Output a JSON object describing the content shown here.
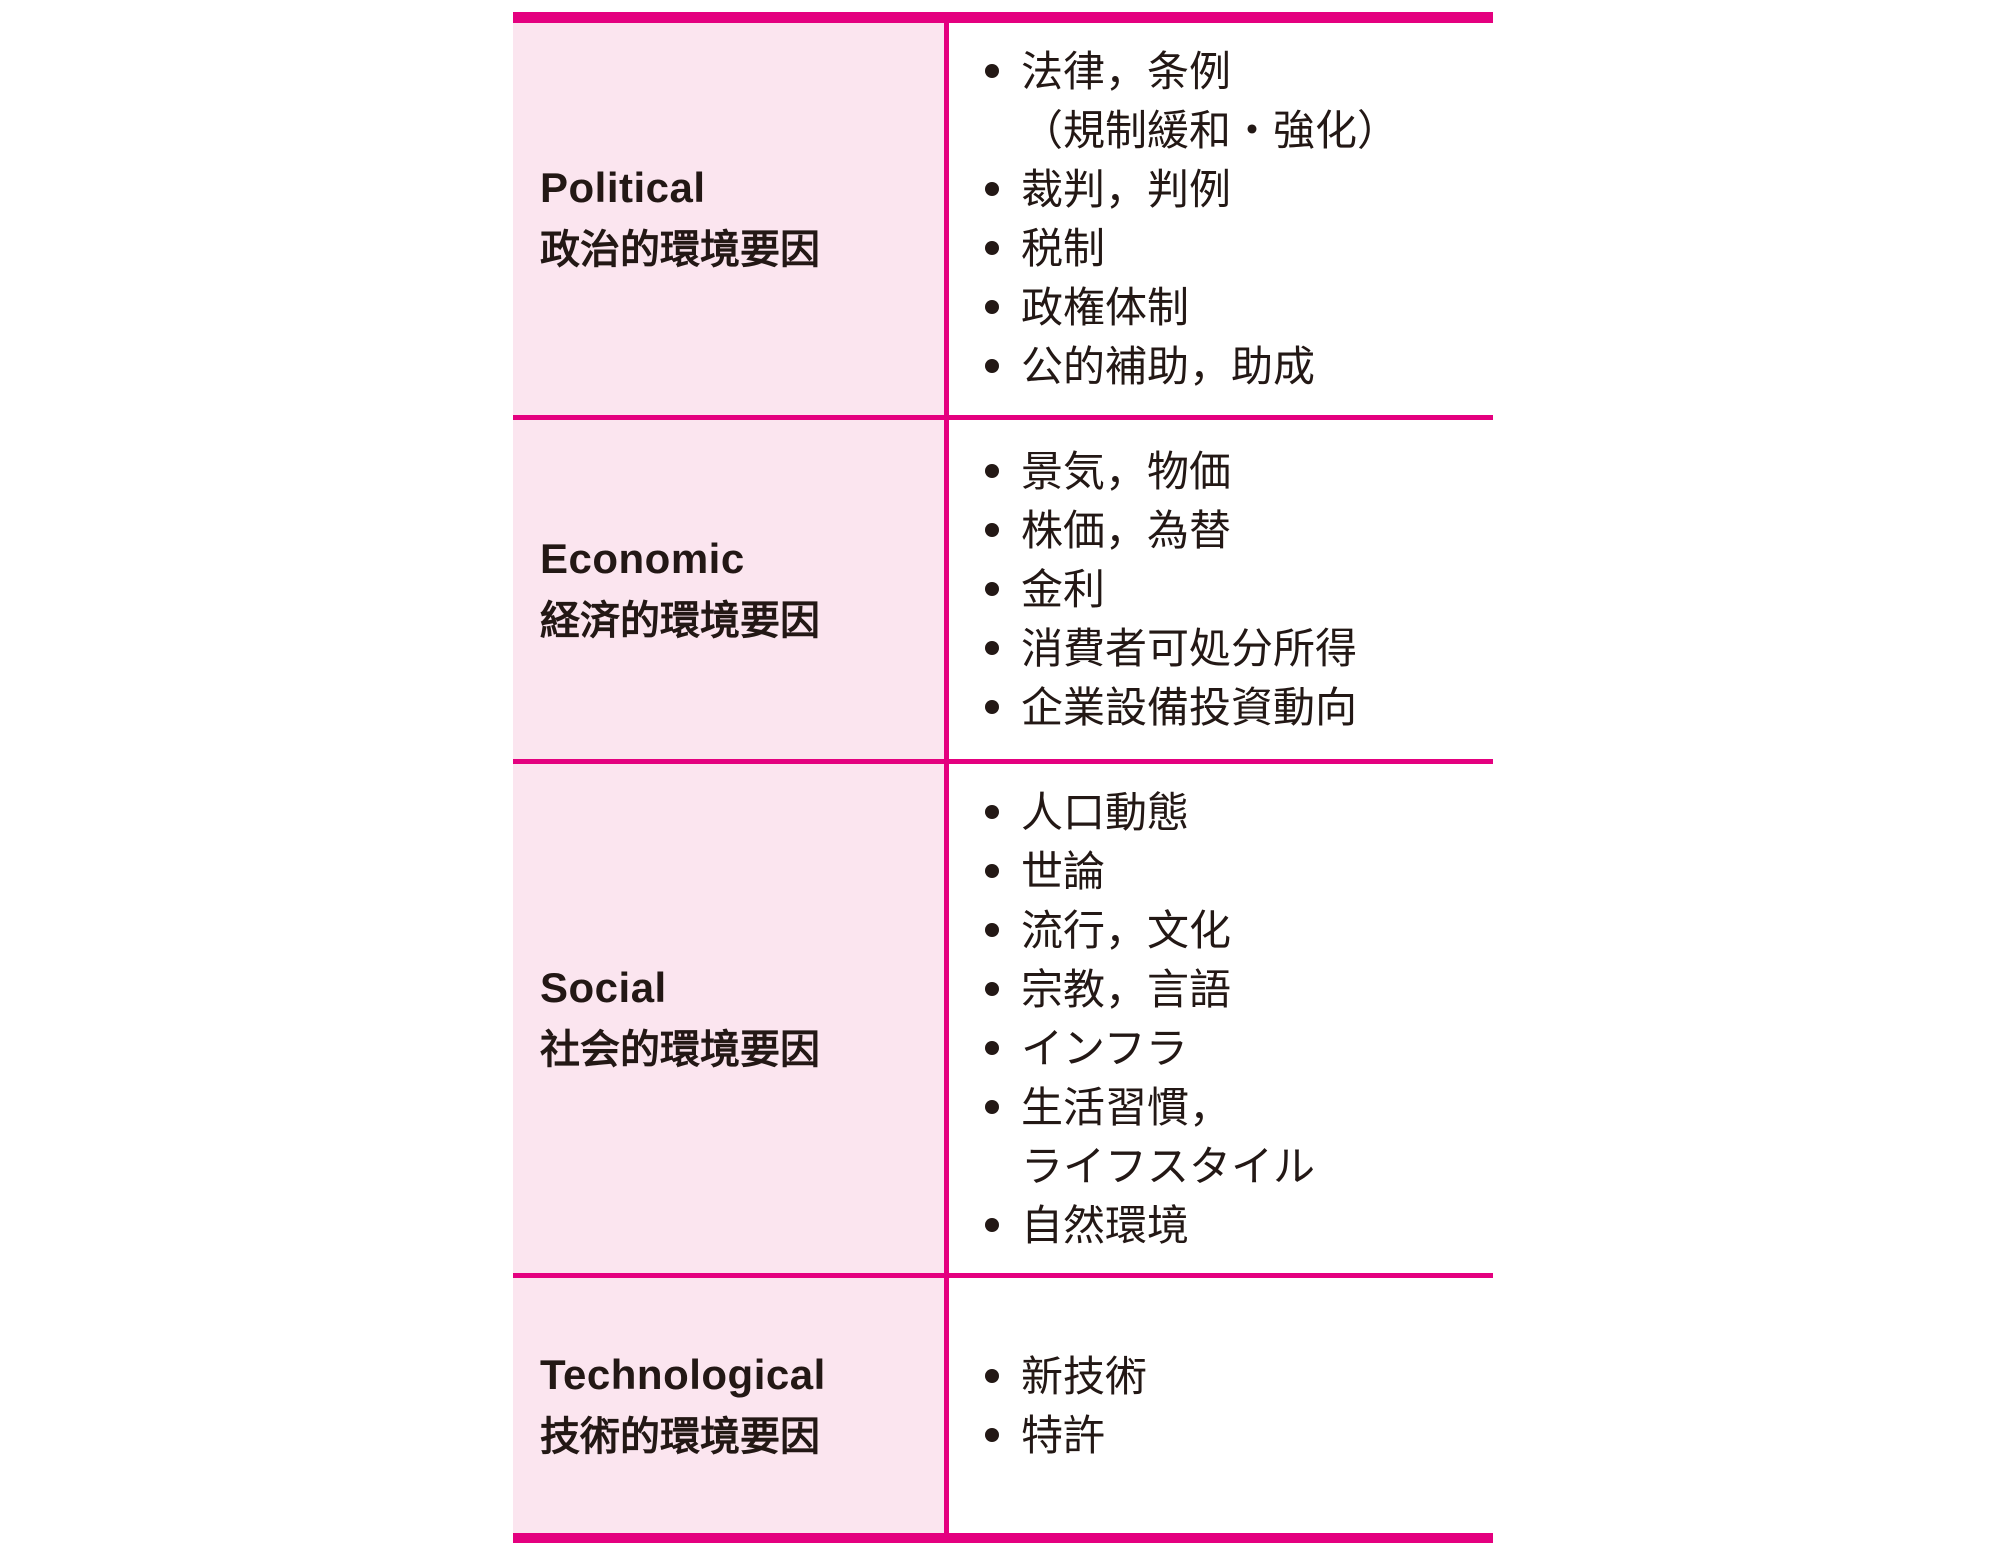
{
  "table": {
    "title_semantic": "PEST environmental factors table",
    "accent_color": "#E4007F",
    "left_column_bg_color": "#FBE5EF",
    "ink_color": "#231815",
    "bullet_glyph": "•",
    "sections": [
      {
        "name_en": "Political",
        "name_ja": "政治的環境要因",
        "items": [
          [
            "法律，条例",
            "（規制緩和・強化）"
          ],
          [
            "裁判，判例"
          ],
          [
            "税制"
          ],
          [
            "政権体制"
          ],
          [
            "公的補助，助成"
          ]
        ]
      },
      {
        "name_en": "Economic",
        "name_ja": "経済的環境要因",
        "items": [
          [
            "景気，物価"
          ],
          [
            "株価，為替"
          ],
          [
            "金利"
          ],
          [
            "消費者可処分所得"
          ],
          [
            "企業設備投資動向"
          ]
        ]
      },
      {
        "name_en": "Social",
        "name_ja": "社会的環境要因",
        "items": [
          [
            "人口動態"
          ],
          [
            "世論"
          ],
          [
            "流行，文化"
          ],
          [
            "宗教，言語"
          ],
          [
            "インフラ"
          ],
          [
            "生活習慣，",
            "ライフスタイル"
          ],
          [
            "自然環境"
          ]
        ]
      },
      {
        "name_en": "Technological",
        "name_ja": "技術的環境要因",
        "items": [
          [
            "新技術"
          ],
          [
            "特許"
          ]
        ]
      }
    ]
  }
}
